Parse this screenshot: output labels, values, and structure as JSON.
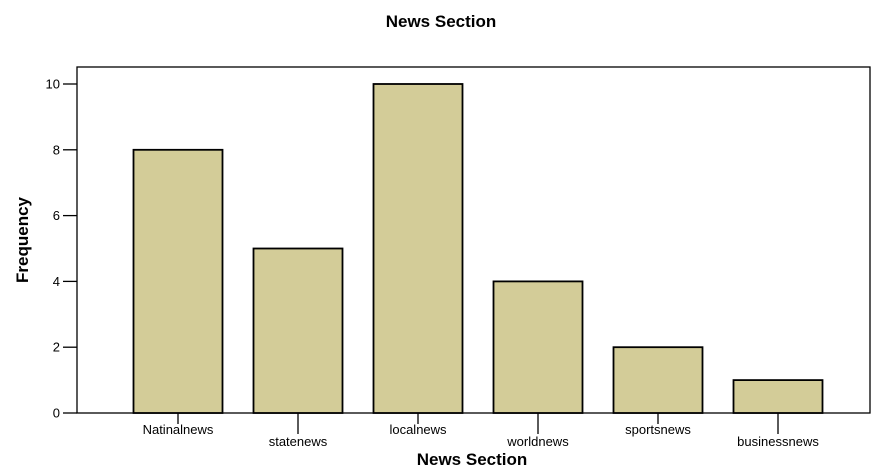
{
  "chart_data": {
    "type": "bar",
    "title": "News Section",
    "xlabel": "News Section",
    "ylabel": "Frequency",
    "categories": [
      "Natinalnews",
      "statenews",
      "localnews",
      "worldnews",
      "sportsnews",
      "businessnews"
    ],
    "values": [
      8,
      5,
      10,
      4,
      2,
      1
    ],
    "ylim": [
      0,
      10.5
    ],
    "yticks": [
      0,
      2,
      4,
      6,
      8,
      10
    ],
    "grid": false,
    "legend": "none",
    "colors": {
      "bar_fill": "#d3cc98",
      "bar_stroke": "#000000",
      "axis": "#000000"
    }
  }
}
